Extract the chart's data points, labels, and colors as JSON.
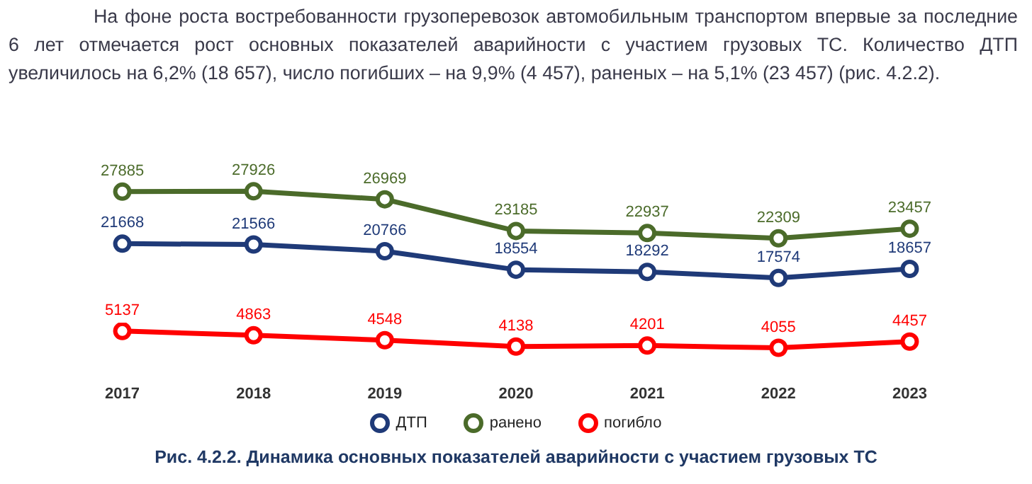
{
  "chart_data": [
    {
      "type": "line",
      "title": "Рис. 4.2.2. Динамика основных показателей аварийности с участием грузовых ТС",
      "annotations": [
        "На фоне роста востребованности грузоперевозок автомобильным транспортом впервые за последние 6 лет отмечается рост основных показателей аварийности с участием грузовых ТС. Количество ДТП увеличилось на 6,2% (18 657), число погибших – на 9,9% (4 457), раненых – на 5,1% (23 457) (рис. 4.2.2)."
      ],
      "categories": [
        "2017",
        "2018",
        "2019",
        "2020",
        "2021",
        "2022",
        "2023"
      ],
      "series": [
        {
          "name": "ДТП",
          "color": "#1f3a78",
          "values": [
            21668,
            21566,
            20766,
            18554,
            18292,
            17574,
            18657
          ]
        },
        {
          "name": "ранено",
          "color": "#4b6b2a",
          "values": [
            27885,
            27926,
            26969,
            23185,
            22937,
            22309,
            23457
          ]
        }
      ],
      "data_labels": true,
      "legend": "bottom",
      "marker": "circle",
      "line_style": "solid",
      "tick_labels": false
    },
    {
      "type": "line",
      "categories": [
        "2017",
        "2018",
        "2019",
        "2020",
        "2021",
        "2022",
        "2023"
      ],
      "series": [
        {
          "name": "погибло",
          "color": "#ff0000",
          "values": [
            5137,
            4863,
            4548,
            4138,
            4201,
            4055,
            4457
          ]
        }
      ],
      "data_labels": true,
      "legend": "bottom",
      "marker": "circle",
      "line_style": "solid"
    }
  ]
}
